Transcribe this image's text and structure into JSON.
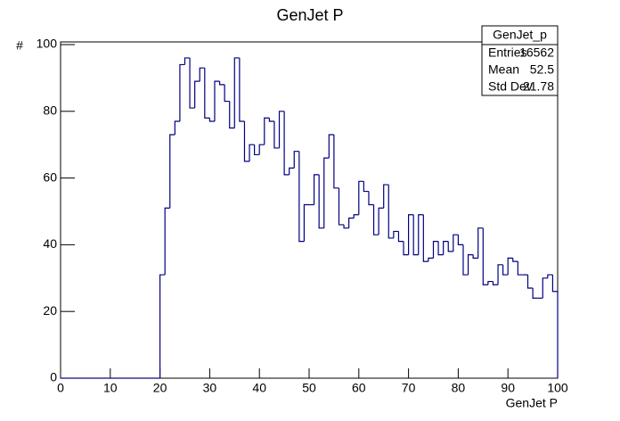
{
  "chart_data": {
    "type": "histogram",
    "title": "GenJet P",
    "x_label": "GenJet P",
    "y_label": "#",
    "bins": [
      0,
      1,
      2,
      3,
      4,
      5,
      6,
      7,
      8,
      9,
      10,
      11,
      12,
      13,
      14,
      15,
      16,
      17,
      18,
      19,
      20,
      21,
      22,
      23,
      24,
      25,
      26,
      27,
      28,
      29,
      30,
      31,
      32,
      33,
      34,
      35,
      36,
      37,
      38,
      39,
      40,
      41,
      42,
      43,
      44,
      45,
      46,
      47,
      48,
      49,
      50,
      51,
      52,
      53,
      54,
      55,
      56,
      57,
      58,
      59,
      60,
      61,
      62,
      63,
      64,
      65,
      66,
      67,
      68,
      69,
      70,
      71,
      72,
      73,
      74,
      75,
      76,
      77,
      78,
      79,
      80,
      81,
      82,
      83,
      84,
      85,
      86,
      87,
      88,
      89,
      90,
      91,
      92,
      93,
      94,
      95,
      96,
      97,
      98,
      99,
      100
    ],
    "values": [
      0,
      0,
      0,
      0,
      0,
      0,
      0,
      0,
      0,
      0,
      0,
      0,
      0,
      0,
      0,
      0,
      0,
      0,
      0,
      0,
      31,
      51,
      73,
      77,
      94,
      96,
      81,
      89,
      93,
      78,
      77,
      89,
      88,
      83,
      75,
      96,
      77,
      65,
      70,
      67,
      70,
      78,
      77,
      69,
      80,
      61,
      63,
      68,
      41,
      52,
      52,
      61,
      45,
      66,
      73,
      57,
      46,
      45,
      48,
      49,
      59,
      56,
      52,
      43,
      51,
      58,
      42,
      44,
      41,
      37,
      49,
      37,
      49,
      35,
      36,
      41,
      37,
      41,
      38,
      43,
      40,
      31,
      37,
      36,
      45,
      28,
      29,
      28,
      34,
      31,
      36,
      35,
      31,
      31,
      27,
      24,
      24,
      30,
      31,
      26
    ],
    "color": "#000080",
    "xlim": [
      0,
      100
    ],
    "xticks": [
      0,
      10,
      20,
      30,
      40,
      50,
      60,
      70,
      80,
      90,
      100
    ],
    "ylim": [
      0,
      100.8
    ],
    "yticks": [
      0,
      20,
      40,
      60,
      80,
      100
    ],
    "stats": {
      "title": "GenJet_p",
      "rows": [
        [
          "Entries",
          16562
        ],
        [
          "Mean",
          52.5
        ],
        [
          "Std Dev",
          21.78
        ]
      ]
    }
  }
}
